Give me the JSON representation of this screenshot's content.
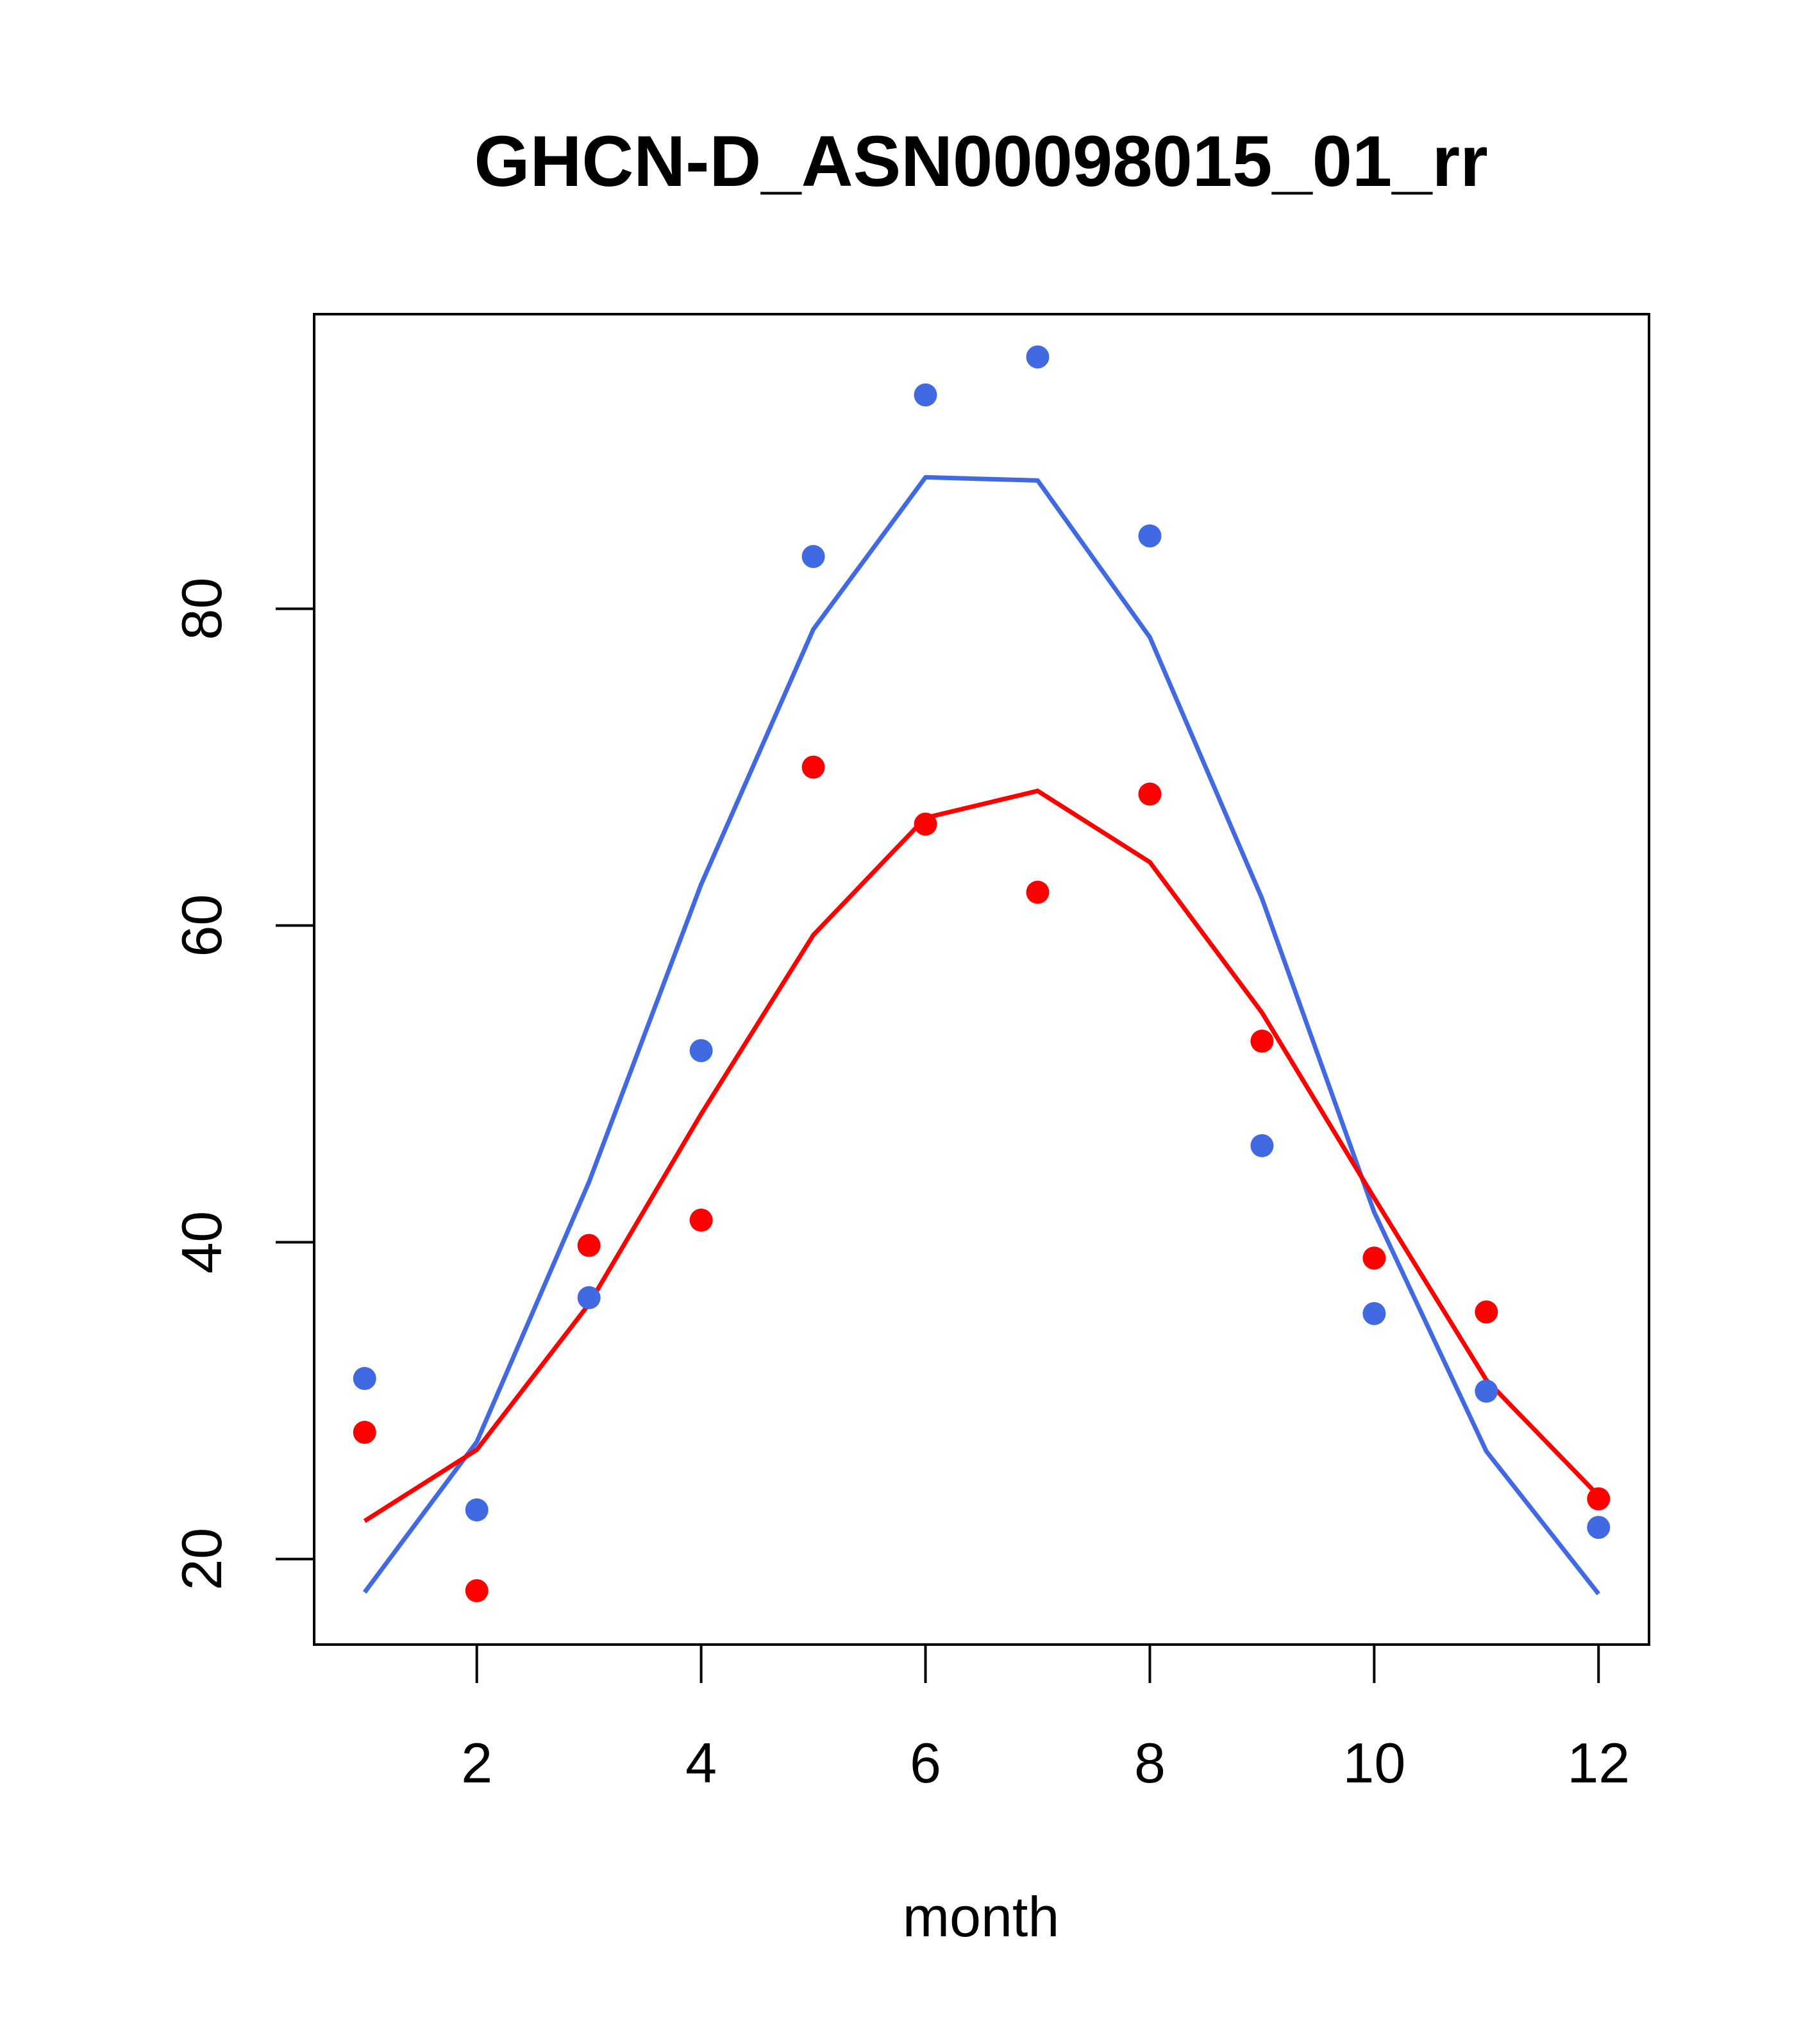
{
  "chart_data": {
    "type": "scatter",
    "title": "GHCN-D_ASN00098015_01_rr",
    "xlabel": "month",
    "ylabel": "",
    "xlim": [
      0.55,
      12.45
    ],
    "ylim": [
      14.6,
      98.6
    ],
    "x_ticks": [
      2,
      4,
      6,
      8,
      10,
      12
    ],
    "y_ticks": [
      20,
      40,
      60,
      80
    ],
    "x_tick_labels": [
      "2",
      "4",
      "6",
      "8",
      "10",
      "12"
    ],
    "y_tick_labels": [
      "20",
      "40",
      "60",
      "80"
    ],
    "grid": false,
    "legend": "none",
    "x": [
      1,
      2,
      3,
      4,
      5,
      6,
      7,
      8,
      9,
      10,
      11,
      12
    ],
    "series": [
      {
        "color": "#4169E1",
        "points": [
          31.4,
          23.1,
          36.5,
          52.1,
          83.3,
          93.5,
          95.9,
          84.6,
          46.1,
          35.5,
          30.6,
          22.0
        ],
        "line": [
          17.9,
          27.4,
          43.8,
          62.6,
          78.7,
          88.3,
          88.1,
          78.2,
          61.7,
          41.9,
          26.8,
          17.8
        ]
      },
      {
        "color": "#FF0000",
        "points": [
          28.0,
          18.0,
          39.8,
          41.4,
          70.0,
          66.4,
          62.1,
          68.3,
          52.7,
          39.0,
          35.6,
          23.8
        ],
        "line": [
          22.4,
          26.9,
          36.1,
          48.1,
          59.4,
          66.8,
          68.5,
          64.0,
          54.5,
          42.8,
          31.3,
          24.0
        ]
      }
    ]
  }
}
